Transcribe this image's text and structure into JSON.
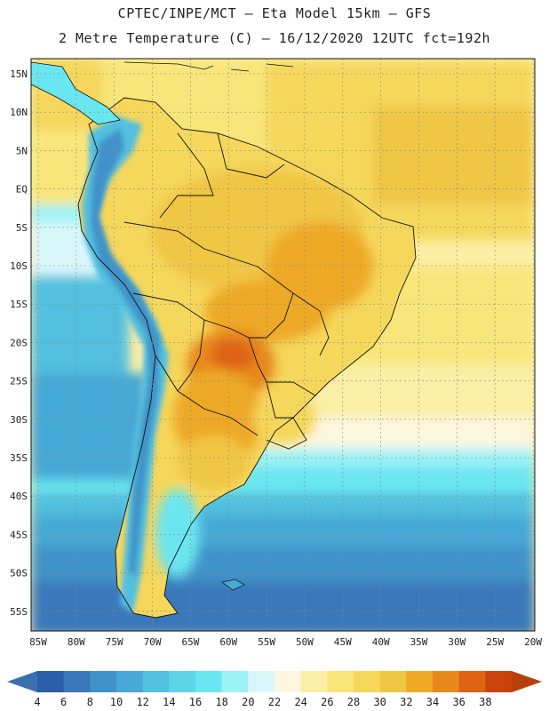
{
  "header": {
    "line1": "CPTEC/INPE/MCT –  Eta Model 15km – GFS",
    "line2": "2 Metre Temperature (C) – 16/12/2020 12UTC fct=192h"
  },
  "map": {
    "lat_labels": [
      "15N",
      "10N",
      "5N",
      "EQ",
      "5S",
      "10S",
      "15S",
      "20S",
      "25S",
      "30S",
      "35S",
      "40S",
      "45S",
      "50S",
      "55S"
    ],
    "lon_labels": [
      "85W",
      "80W",
      "75W",
      "70W",
      "65W",
      "60W",
      "55W",
      "50W",
      "45W",
      "40W",
      "35W",
      "30W",
      "25W",
      "20W"
    ],
    "ocean_regions": [
      {
        "name": "north-atlantic-warm",
        "value_c": 28
      },
      {
        "name": "equatorial-atlantic",
        "value_c": 30
      },
      {
        "name": "south-atlantic-subtropical",
        "value_c": 22
      },
      {
        "name": "south-atlantic-cold",
        "value_c": 10
      },
      {
        "name": "southern-ocean",
        "value_c": 6
      },
      {
        "name": "pacific-coast-cold",
        "value_c": 14
      }
    ],
    "land_regions": [
      {
        "name": "amazon-basin",
        "value_c": 28
      },
      {
        "name": "central-brazil",
        "value_c": 32
      },
      {
        "name": "chaco-hotspot",
        "value_c": 36
      },
      {
        "name": "pampas",
        "value_c": 30
      },
      {
        "name": "andes",
        "value_c": 10
      },
      {
        "name": "patagonia",
        "value_c": 14
      }
    ]
  },
  "colorbar": {
    "labels": [
      "4",
      "6",
      "8",
      "10",
      "12",
      "14",
      "16",
      "18",
      "20",
      "22",
      "24",
      "26",
      "28",
      "30",
      "32",
      "34",
      "36",
      "38"
    ],
    "colors": [
      "#2b5ea8",
      "#3a78bb",
      "#3f93c9",
      "#46a9d6",
      "#52c0df",
      "#5dd4e8",
      "#6ae6f0",
      "#9df2f6",
      "#d9f7fb",
      "#fdf6e0",
      "#fbefa6",
      "#f9e67a",
      "#f5d75c",
      "#f0c645",
      "#eea925",
      "#e8891e",
      "#de6315",
      "#c9430b"
    ],
    "left_arrow_color": "#3a6fb0",
    "right_arrow_color": "#b8400c"
  }
}
